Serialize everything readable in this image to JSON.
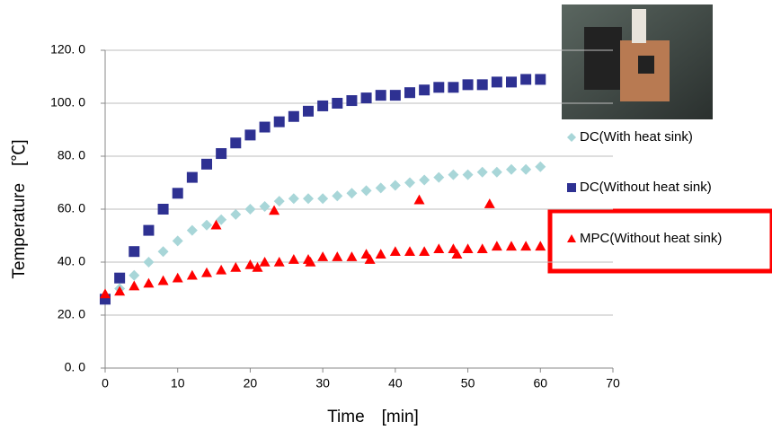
{
  "chart_data": {
    "type": "scatter",
    "xlabel": "Time　[min]",
    "ylabel": "Temperature　[℃]",
    "xlim": [
      0,
      70
    ],
    "xticks": [
      0,
      10,
      20,
      30,
      40,
      50,
      60,
      70
    ],
    "ylim": [
      0,
      120
    ],
    "yticks": [
      {
        "value": 0,
        "label": "0. 0"
      },
      {
        "value": 20,
        "label": "20. 0"
      },
      {
        "value": 40,
        "label": "40. 0"
      },
      {
        "value": 60,
        "label": "60. 0"
      },
      {
        "value": 80,
        "label": "80. 0"
      },
      {
        "value": 100,
        "label": "100. 0"
      },
      {
        "value": 120,
        "label": "120. 0"
      }
    ],
    "grid": true,
    "series": [
      {
        "name": "DC(With heat sink)",
        "color": "#a8d6d8",
        "marker": "diamond",
        "x": [
          0,
          2,
          4,
          6,
          8,
          10,
          12,
          14,
          16,
          18,
          20,
          22,
          24,
          26,
          28,
          30,
          32,
          34,
          36,
          38,
          40,
          42,
          44,
          46,
          48,
          50,
          52,
          54,
          56,
          58,
          60
        ],
        "values": [
          26,
          30,
          35,
          40,
          44,
          48,
          52,
          54,
          56,
          58,
          60,
          61,
          63,
          64,
          64,
          64,
          65,
          66,
          67,
          68,
          69,
          70,
          71,
          72,
          73,
          73,
          74,
          74,
          75,
          75,
          76
        ]
      },
      {
        "name": "DC(Without heat sink)",
        "color": "#2e3192",
        "marker": "square",
        "x": [
          0,
          2,
          4,
          6,
          8,
          10,
          12,
          14,
          16,
          18,
          20,
          22,
          24,
          26,
          28,
          30,
          32,
          34,
          36,
          38,
          40,
          42,
          44,
          46,
          48,
          50,
          52,
          54,
          56,
          58,
          60
        ],
        "values": [
          26,
          34,
          44,
          52,
          60,
          66,
          72,
          77,
          81,
          85,
          88,
          91,
          93,
          95,
          97,
          99,
          100,
          101,
          102,
          103,
          103,
          104,
          105,
          106,
          106,
          107,
          107,
          108,
          108,
          109,
          109
        ]
      },
      {
        "name": "MPC(Without heat sink)",
        "color": "#ff0000",
        "marker": "triangle",
        "x": [
          0,
          2,
          4,
          6,
          8,
          10,
          12,
          14,
          15.3,
          16,
          18,
          20,
          21,
          22,
          23.3,
          24,
          26,
          28,
          28.3,
          30,
          32,
          34,
          36,
          36.5,
          38,
          40,
          42,
          43.3,
          44,
          46,
          48,
          48.5,
          50,
          52,
          53,
          54,
          56,
          58,
          60
        ],
        "values": [
          28,
          29,
          31,
          32,
          33,
          34,
          35,
          36,
          54,
          37,
          38,
          39,
          38,
          40,
          59.5,
          40,
          41,
          41,
          40,
          42,
          42,
          42,
          43,
          41,
          43,
          44,
          44,
          63.5,
          44,
          45,
          45,
          43,
          45,
          45,
          62,
          46,
          46,
          46,
          46
        ]
      }
    ]
  }
}
